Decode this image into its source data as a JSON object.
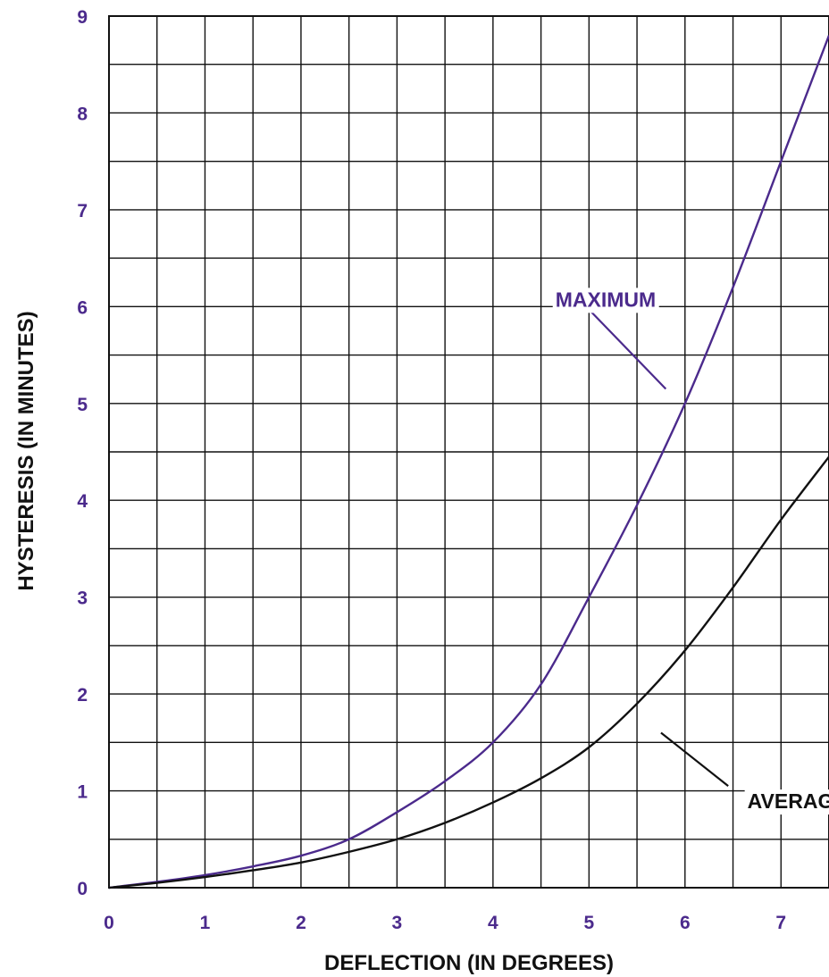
{
  "chart_data": {
    "type": "line",
    "title": "",
    "xlabel": "DEFLECTION (IN DEGREES)",
    "ylabel": "HYSTERESIS (IN MINUTES)",
    "xlim": [
      0,
      7.5
    ],
    "ylim": [
      0,
      9
    ],
    "x_ticks": [
      0,
      1,
      2,
      3,
      4,
      5,
      6,
      7
    ],
    "y_ticks": [
      0,
      1,
      2,
      3,
      4,
      5,
      6,
      7,
      8,
      9
    ],
    "x_grid_step": 0.5,
    "y_grid_step": 0.5,
    "grid": true,
    "legend": "none",
    "series": [
      {
        "name": "MAXIMUM",
        "color": "#4b2a8c",
        "x": [
          0,
          0.5,
          1,
          1.5,
          2,
          2.5,
          3,
          3.5,
          4,
          4.5,
          5,
          5.5,
          6,
          6.5,
          7,
          7.5
        ],
        "y": [
          0,
          0.06,
          0.13,
          0.22,
          0.33,
          0.5,
          0.78,
          1.1,
          1.5,
          2.1,
          3.0,
          3.95,
          5.0,
          6.2,
          7.5,
          8.8
        ]
      },
      {
        "name": "AVERAGE",
        "color": "#111111",
        "x": [
          0,
          0.5,
          1,
          1.5,
          2,
          2.5,
          3,
          3.5,
          4,
          4.5,
          5,
          5.5,
          6,
          6.5,
          7,
          7.5
        ],
        "y": [
          0,
          0.05,
          0.11,
          0.18,
          0.26,
          0.37,
          0.5,
          0.67,
          0.88,
          1.13,
          1.45,
          1.9,
          2.45,
          3.1,
          3.8,
          4.45
        ]
      }
    ],
    "annotations": [
      {
        "text": "MAXIMUM",
        "series": "MAXIMUM",
        "text_at": [
          4.65,
          6.0
        ],
        "arrow_from": [
          5.0,
          5.97
        ],
        "arrow_to": [
          5.8,
          5.15
        ]
      },
      {
        "text": "AVERAGE",
        "series": "AVERAGE",
        "text_at": [
          6.65,
          0.82
        ],
        "arrow_from": [
          6.45,
          1.05
        ],
        "arrow_to": [
          5.75,
          1.6
        ]
      }
    ]
  },
  "colors": {
    "grid": "#111111",
    "tick_labels": "#4b2a8c",
    "axis_title": "#111111"
  }
}
